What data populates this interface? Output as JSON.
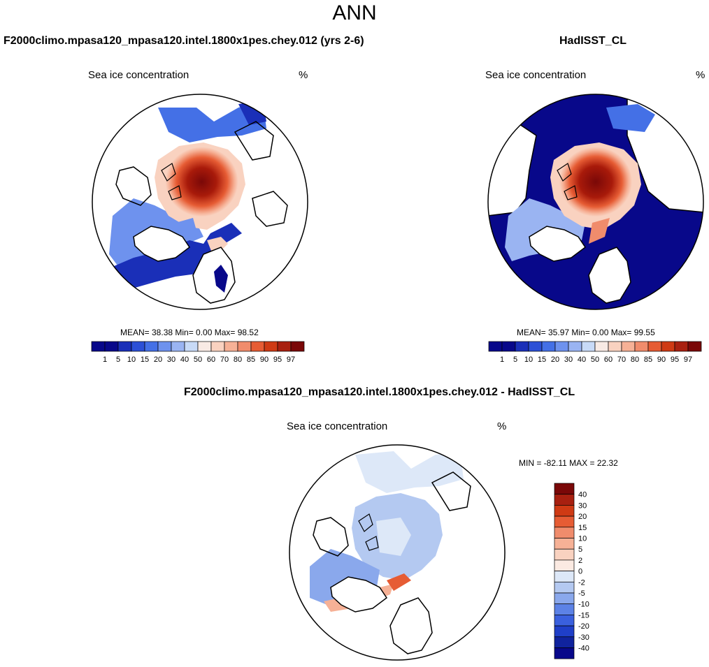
{
  "figure": {
    "title": "ANN"
  },
  "panels": [
    {
      "case": "F2000climo.mpasa120_mpasa120.intel.1800x1pes.chey.012 (yrs 2-6)",
      "variable": "Sea ice concentration",
      "units": "%",
      "stats": "MEAN=  38.38  Min=   0.00  Max=  98.52"
    },
    {
      "case": "HadISST_CL",
      "variable": "Sea ice concentration",
      "units": "%",
      "stats": "MEAN=  35.97  Min=   0.00  Max=  99.55"
    },
    {
      "case": "F2000climo.mpasa120_mpasa120.intel.1800x1pes.chey.012 - HadISST_CL",
      "variable": "Sea ice concentration",
      "units": "%",
      "stats": "MIN = -82.11 MAX =  22.32"
    }
  ],
  "colorbar_levels": {
    "levels": [
      "1",
      "5",
      "10",
      "15",
      "20",
      "30",
      "40",
      "50",
      "60",
      "70",
      "80",
      "85",
      "90",
      "95",
      "97"
    ],
    "colors": [
      "#08088a",
      "#1a2fb8",
      "#2c50d6",
      "#4470e6",
      "#6e92ee",
      "#9ab4f2",
      "#c8daf7",
      "#f8eae4",
      "#f9d2c0",
      "#f6b196",
      "#f08c6c",
      "#e65c34",
      "#cf3a14",
      "#a82010",
      "#7a0808"
    ]
  },
  "colorbar_diff": {
    "levels": [
      "40",
      "30",
      "20",
      "15",
      "10",
      "5",
      "2",
      "0",
      "-2",
      "-5",
      "-10",
      "-15",
      "-20",
      "-30",
      "-40"
    ],
    "colors": [
      "#7a0808",
      "#a82010",
      "#cf3a14",
      "#e65c34",
      "#f08c6c",
      "#f6b196",
      "#f9d2c0",
      "#fbeae2",
      "#dde8f8",
      "#b4c9f1",
      "#8aa8ec",
      "#5c82e6",
      "#3a60de",
      "#1f3fc8",
      "#10239e",
      "#08088a"
    ]
  },
  "palette": {
    "ice_high": "#8b0000",
    "ice_mid": "#e8603a",
    "open_low": "#0a1f9e",
    "diff_neg": "#a7bff0",
    "diff_pos": "#f2a38a",
    "coast": "#000000"
  }
}
